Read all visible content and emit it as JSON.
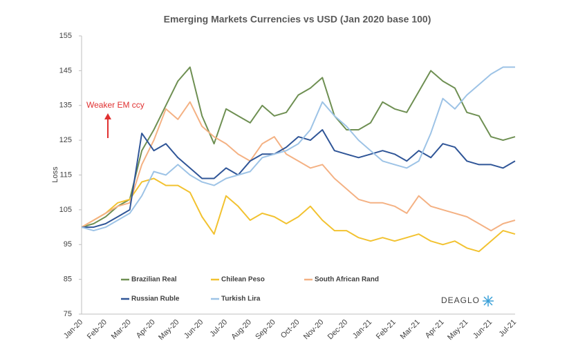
{
  "chart_data": {
    "type": "line",
    "title": "Emerging Markets Currencies vs USD (Jan 2020 base 100)",
    "y_label": "Loss",
    "annotation": "Weaker EM ccy",
    "logo": "DEAGLO",
    "categories": [
      "Jan-20",
      null,
      "Feb-20",
      null,
      "Mar-20",
      null,
      "Apr-20",
      null,
      "May-20",
      null,
      "Jun-20",
      null,
      "Jul-20",
      null,
      "Aug-20",
      null,
      "Sep-20",
      null,
      "Oct-20",
      null,
      "Nov-20",
      null,
      "Dec-20",
      null,
      "Jan-21",
      null,
      "Feb-21",
      null,
      "Mar-21",
      null,
      "Apr-21",
      null,
      "May-21",
      null,
      "Jun-21",
      null,
      "Jul-21"
    ],
    "ylim": [
      75,
      155
    ],
    "yticks": [
      75,
      85,
      95,
      105,
      115,
      125,
      135,
      145,
      155
    ],
    "grid": false,
    "series": [
      {
        "name": "Brazilian Real",
        "color": "#6e8f52",
        "values": [
          100,
          101,
          103,
          106,
          108,
          122,
          128,
          135,
          142,
          146,
          132,
          124,
          134,
          132,
          130,
          135,
          132,
          133,
          138,
          140,
          143,
          132,
          128,
          128,
          130,
          136,
          134,
          133,
          139,
          145,
          142,
          140,
          133,
          132,
          126,
          125,
          126
        ]
      },
      {
        "name": "Chilean Peso",
        "color": "#f2c230",
        "values": [
          100,
          102,
          104,
          107,
          108,
          113,
          114,
          112,
          112,
          110,
          103,
          98,
          109,
          106,
          102,
          104,
          103,
          101,
          103,
          106,
          102,
          99,
          99,
          97,
          96,
          97,
          96,
          97,
          98,
          96,
          95,
          96,
          94,
          93,
          96,
          99,
          98
        ]
      },
      {
        "name": "South African Rand",
        "color": "#f4b183",
        "values": [
          100,
          102,
          104,
          106,
          107,
          118,
          125,
          134,
          131,
          136,
          129,
          126,
          124,
          121,
          119,
          124,
          126,
          121,
          119,
          117,
          118,
          114,
          111,
          108,
          107,
          107,
          106,
          104,
          109,
          106,
          105,
          104,
          103,
          101,
          99,
          101,
          102
        ]
      },
      {
        "name": "Russian Ruble",
        "color": "#2f5597",
        "values": [
          100,
          100,
          101,
          103,
          105,
          127,
          122,
          124,
          120,
          117,
          114,
          114,
          117,
          115,
          119,
          121,
          121,
          123,
          126,
          125,
          128,
          122,
          121,
          120,
          121,
          122,
          121,
          119,
          122,
          120,
          124,
          123,
          119,
          118,
          118,
          117,
          119
        ]
      },
      {
        "name": "Turkish Lira",
        "color": "#9dc3e6",
        "values": [
          100,
          99,
          100,
          102,
          104,
          109,
          116,
          115,
          118,
          115,
          113,
          112,
          114,
          115,
          116,
          120,
          121,
          122,
          124,
          128,
          136,
          132,
          129,
          125,
          122,
          119,
          118,
          117,
          119,
          127,
          137,
          134,
          138,
          141,
          144,
          146,
          146
        ]
      }
    ]
  }
}
